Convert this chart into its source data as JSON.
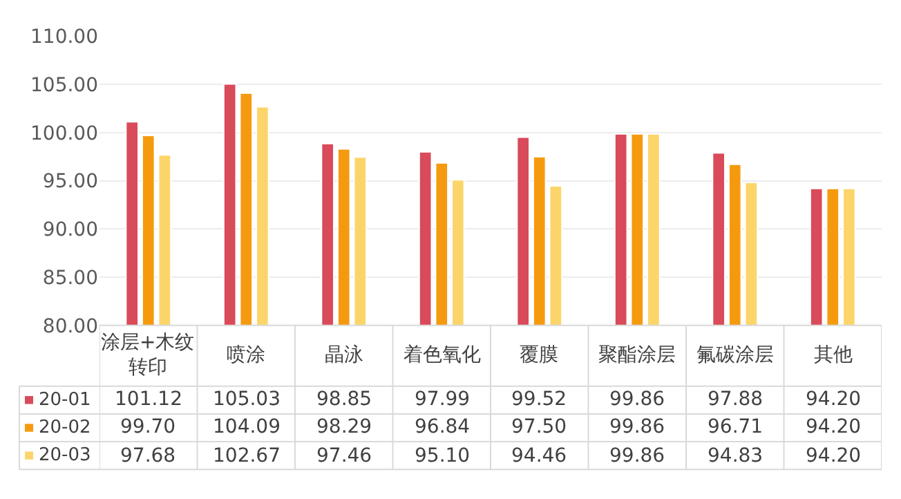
{
  "chart_data": {
    "type": "bar",
    "categories": [
      "涂层+木纹转印",
      "喷涂",
      "晶泳",
      "着色氧化",
      "覆膜",
      "聚酯涂层",
      "氟碳涂层",
      "其他"
    ],
    "series": [
      {
        "name": "20-01",
        "color": "#d94a5a",
        "values": [
          101.12,
          105.03,
          98.85,
          97.99,
          99.52,
          99.86,
          97.88,
          94.2
        ],
        "value_labels": [
          "101.12",
          "105.03",
          "98.85",
          "97.99",
          "99.52",
          "99.86",
          "97.88",
          "94.20"
        ]
      },
      {
        "name": "20-02",
        "color": "#f59a0f",
        "values": [
          99.7,
          104.09,
          98.29,
          96.84,
          97.5,
          99.86,
          96.71,
          94.2
        ],
        "value_labels": [
          "99.70",
          "104.09",
          "98.29",
          "96.84",
          "97.50",
          "99.86",
          "96.71",
          "94.20"
        ]
      },
      {
        "name": "20-03",
        "color": "#fcd56a",
        "values": [
          97.68,
          102.67,
          97.46,
          95.1,
          94.46,
          99.86,
          94.83,
          94.2
        ],
        "value_labels": [
          "97.68",
          "102.67",
          "97.46",
          "95.10",
          "94.46",
          "99.86",
          "94.83",
          "94.20"
        ]
      }
    ],
    "ylim": [
      80,
      110
    ],
    "yticks": [
      {
        "value": 80,
        "label": "80.00"
      },
      {
        "value": 85,
        "label": "85.00"
      },
      {
        "value": 90,
        "label": "90.00"
      },
      {
        "value": 95,
        "label": "95.00"
      },
      {
        "value": 100,
        "label": "100.00"
      },
      {
        "value": 105,
        "label": "105.00"
      },
      {
        "value": 110,
        "label": "110.00"
      }
    ],
    "grid": "y",
    "legend": "bottom"
  }
}
